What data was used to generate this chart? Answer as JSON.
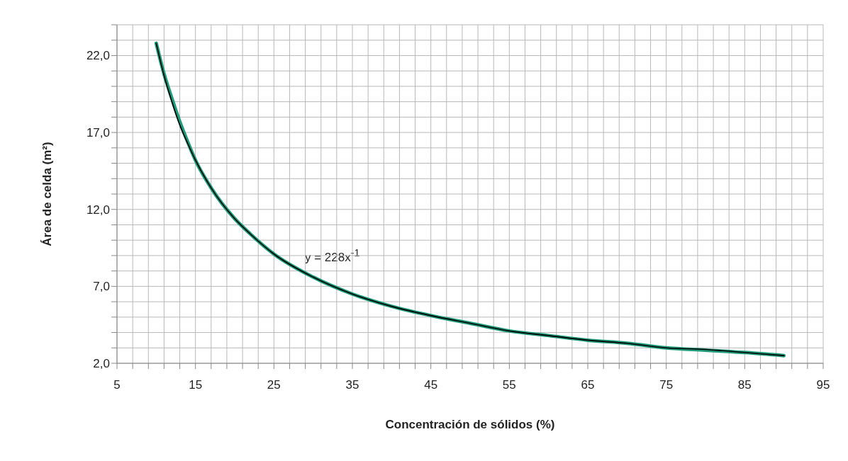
{
  "chart_data": {
    "type": "line",
    "xlabel": "Concentración de sólidos (%)",
    "ylabel": "Área de celda (m²)",
    "series": [
      {
        "color": "#1f9a7a",
        "x": [
          10,
          11,
          12,
          13,
          14,
          15,
          17,
          20,
          22,
          25,
          30,
          35,
          40,
          45,
          50,
          55,
          60,
          65,
          70,
          75,
          80,
          85,
          90
        ],
        "values": [
          22.8,
          20.8,
          19.2,
          17.7,
          16.4,
          15.2,
          13.4,
          11.4,
          10.4,
          9.1,
          7.6,
          6.5,
          5.7,
          5.1,
          4.6,
          4.1,
          3.8,
          3.5,
          3.3,
          3.0,
          2.85,
          2.7,
          2.5
        ]
      },
      {
        "color": "#000000",
        "x": [
          10,
          11,
          12,
          13,
          14,
          15,
          17,
          20,
          22,
          25,
          30,
          35,
          40,
          45,
          50,
          55,
          60,
          65,
          70,
          75,
          80,
          85,
          90
        ],
        "values": [
          22.8,
          20.7,
          19.0,
          17.5,
          16.3,
          15.2,
          13.4,
          11.4,
          10.4,
          9.1,
          7.6,
          6.5,
          5.7,
          5.1,
          4.6,
          4.1,
          3.8,
          3.5,
          3.3,
          3.0,
          2.9,
          2.7,
          2.5
        ]
      }
    ],
    "annotations": [
      "y = 228x$^{-1}$"
    ],
    "xlim": [
      5,
      95
    ],
    "xticks": [
      5,
      {
        "value": 7,
        "label": null
      },
      {
        "value": 9,
        "label": null
      },
      {
        "value": 11,
        "label": null
      },
      {
        "value": 13,
        "label": null
      },
      15,
      {
        "value": 17,
        "label": null
      },
      {
        "value": 19,
        "label": null
      },
      {
        "value": 21,
        "label": null
      },
      {
        "value": 23,
        "label": null
      },
      25,
      {
        "value": 27,
        "label": null
      },
      {
        "value": 29,
        "label": null
      },
      {
        "value": 31,
        "label": null
      },
      {
        "value": 33,
        "label": null
      },
      35,
      {
        "value": 37,
        "label": null
      },
      {
        "value": 39,
        "label": null
      },
      {
        "value": 41,
        "label": null
      },
      {
        "value": 43,
        "label": null
      },
      45,
      {
        "value": 47,
        "label": null
      },
      {
        "value": 49,
        "label": null
      },
      {
        "value": 51,
        "label": null
      },
      {
        "value": 53,
        "label": null
      },
      55,
      {
        "value": 57,
        "label": null
      },
      {
        "value": 59,
        "label": null
      },
      {
        "value": 61,
        "label": null
      },
      {
        "value": 63,
        "label": null
      },
      65,
      {
        "value": 67,
        "label": null
      },
      {
        "value": 69,
        "label": null
      },
      {
        "value": 71,
        "label": null
      },
      {
        "value": 73,
        "label": null
      },
      75,
      {
        "value": 77,
        "label": null
      },
      {
        "value": 79,
        "label": null
      },
      {
        "value": 81,
        "label": null
      },
      {
        "value": 83,
        "label": null
      },
      85,
      {
        "value": 87,
        "label": null
      },
      {
        "value": 89,
        "label": null
      },
      {
        "value": 91,
        "label": null
      },
      {
        "value": 93,
        "label": null
      },
      95
    ],
    "ylim": [
      2,
      24
    ],
    "yticks": [
      {
        "value": 2,
        "label": "2,0"
      },
      {
        "value": 3,
        "label": null
      },
      {
        "value": 4,
        "label": null
      },
      {
        "value": 5,
        "label": null
      },
      {
        "value": 6,
        "label": null
      },
      {
        "value": 7,
        "label": "7,0"
      },
      {
        "value": 8,
        "label": null
      },
      {
        "value": 9,
        "label": null
      },
      {
        "value": 10,
        "label": null
      },
      {
        "value": 11,
        "label": null
      },
      {
        "value": 12,
        "label": "12,0"
      },
      {
        "value": 13,
        "label": null
      },
      {
        "value": 14,
        "label": null
      },
      {
        "value": 15,
        "label": null
      },
      {
        "value": 16,
        "label": null
      },
      {
        "value": 17,
        "label": "17,0"
      },
      {
        "value": 18,
        "label": null
      },
      {
        "value": 19,
        "label": null
      },
      {
        "value": 20,
        "label": null
      },
      {
        "value": 21,
        "label": null
      },
      {
        "value": 22,
        "label": "22,0"
      },
      {
        "value": 23,
        "label": null
      },
      {
        "value": 24,
        "label": null
      }
    ],
    "grid": true,
    "legend": false,
    "marker": "none",
    "line_style": "solid"
  }
}
